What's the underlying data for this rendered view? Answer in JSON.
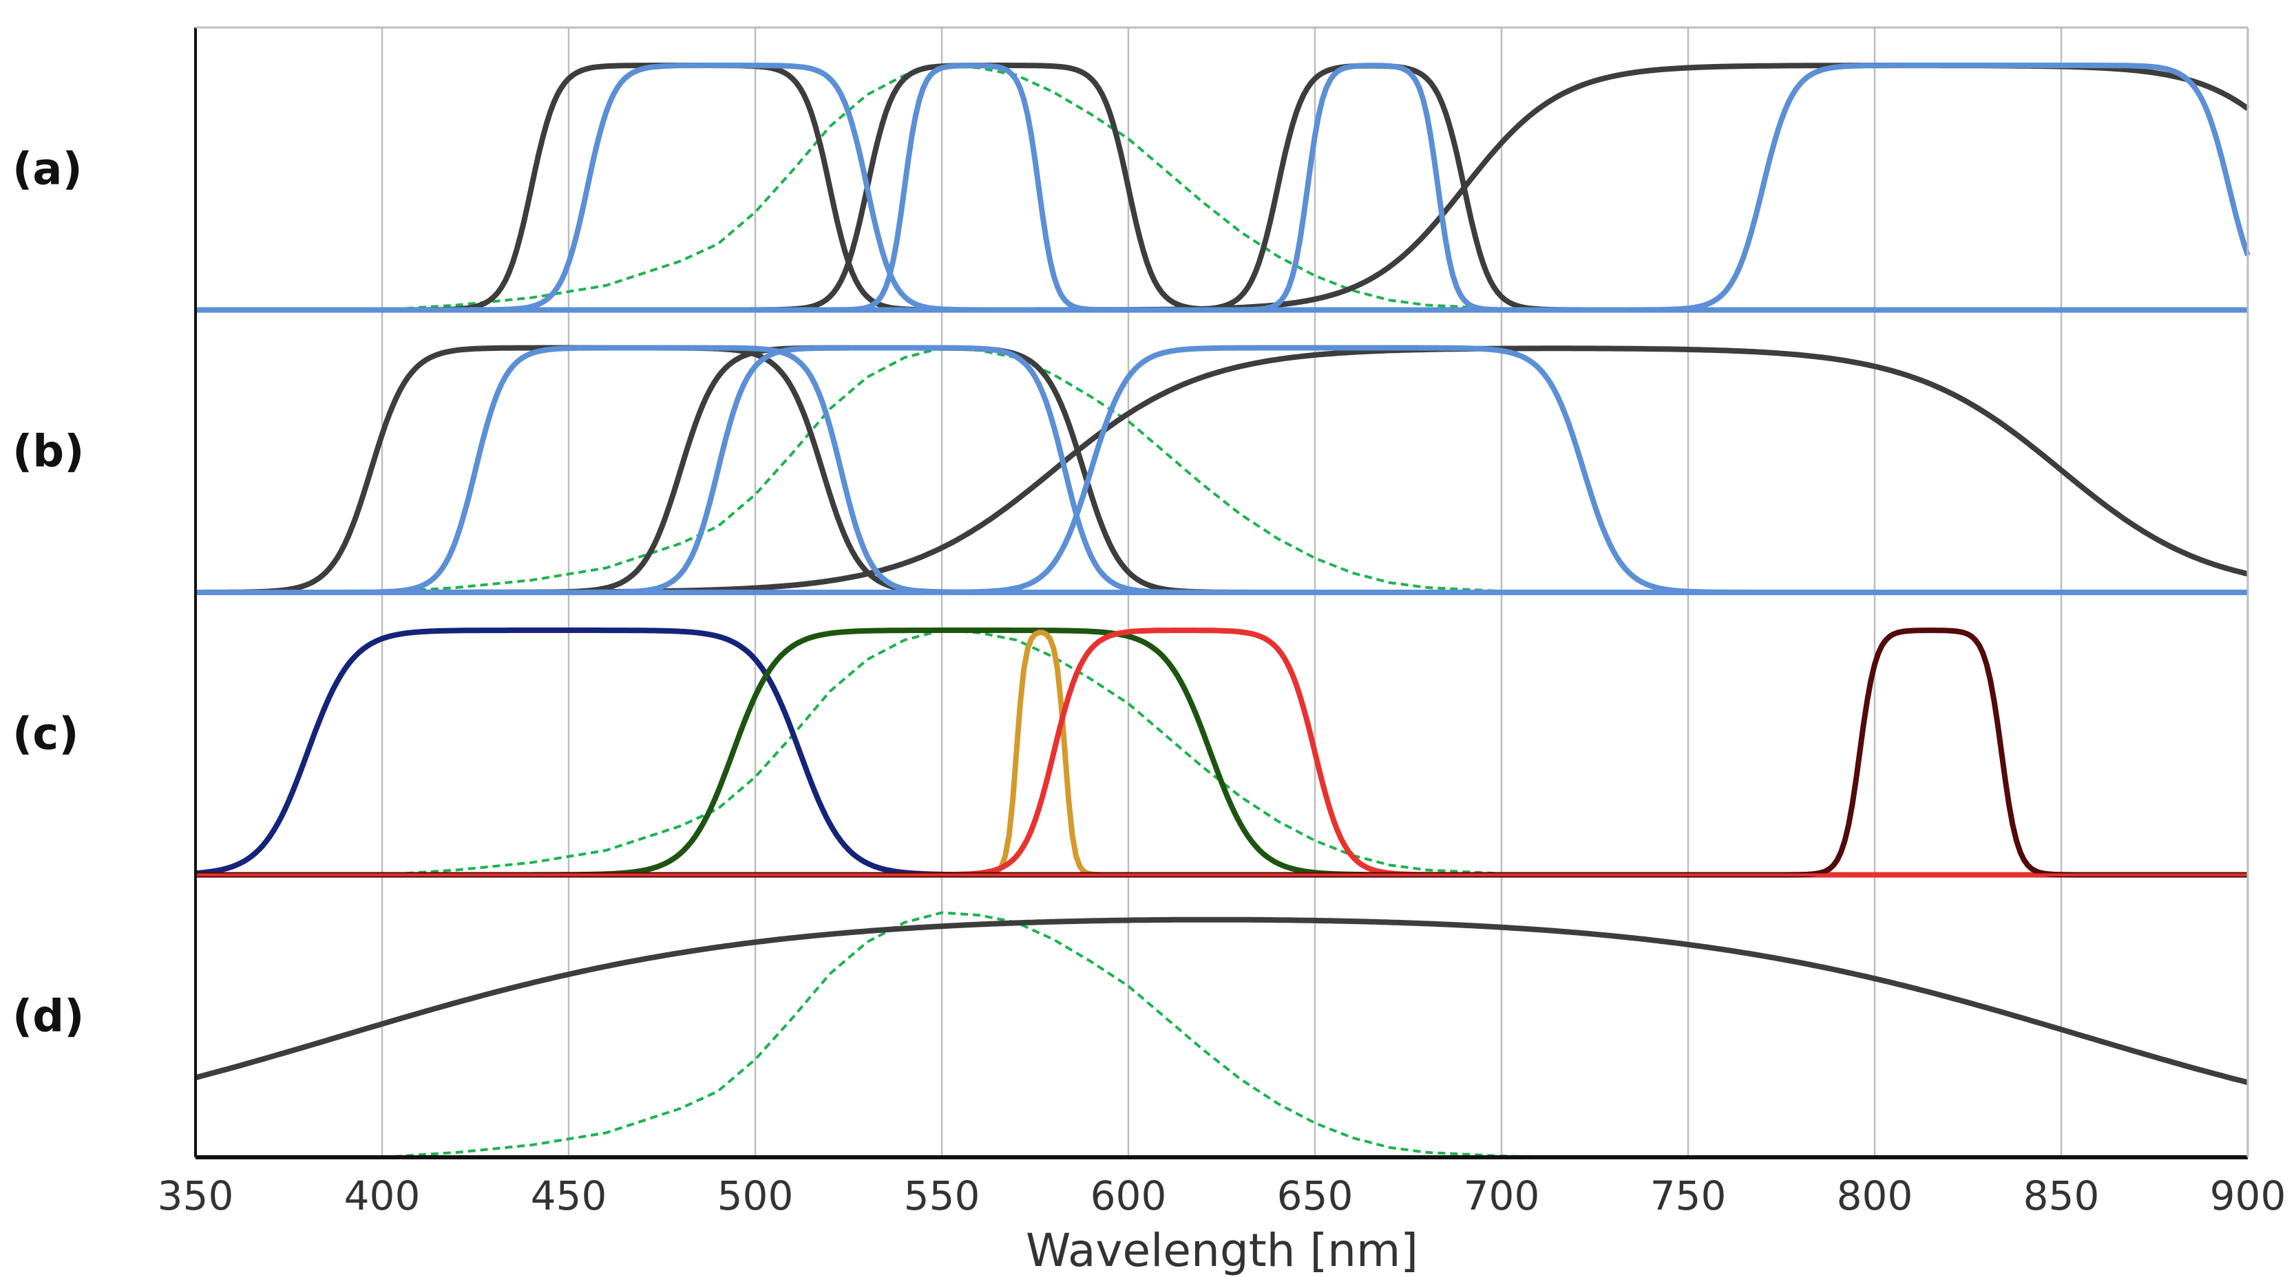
{
  "chart_data": {
    "type": "line",
    "xlabel": "Wavelength [nm]",
    "ylabel": "",
    "xlim": [
      350,
      900
    ],
    "ylim": [
      0,
      1
    ],
    "x_ticks": [
      350,
      400,
      450,
      500,
      550,
      600,
      650,
      700,
      750,
      800,
      850,
      900
    ],
    "x_tick_labels": [
      "350",
      "400",
      "450",
      "500",
      "550",
      "600",
      "650",
      "700",
      "750",
      "800",
      "850",
      "900"
    ],
    "grid": "vertical",
    "reference_curve": {
      "name": "Photopic luminosity (green dashed)",
      "color": "#1db34f",
      "style": "dashed",
      "x": [
        350,
        400,
        420,
        440,
        460,
        480,
        490,
        500,
        510,
        520,
        530,
        540,
        550,
        560,
        570,
        580,
        590,
        600,
        610,
        620,
        630,
        640,
        650,
        660,
        670,
        680,
        700,
        720,
        750,
        800,
        900
      ],
      "y": [
        0.0,
        0.0,
        0.02,
        0.05,
        0.1,
        0.2,
        0.27,
        0.4,
        0.57,
        0.75,
        0.88,
        0.96,
        1.0,
        0.99,
        0.96,
        0.89,
        0.8,
        0.7,
        0.57,
        0.44,
        0.32,
        0.22,
        0.14,
        0.08,
        0.04,
        0.02,
        0.005,
        0.0,
        0.0,
        0.0,
        0.0
      ]
    },
    "panels": [
      {
        "label": "(a)",
        "baseline_color": "#5b8fd6",
        "series": [
          {
            "name": "a-dark-blue-band",
            "color": "#3d3d3d",
            "lo": 440,
            "hi": 520,
            "w": 3.5,
            "peak": 1.0
          },
          {
            "name": "a-dark-green-band",
            "color": "#3d3d3d",
            "lo": 530,
            "hi": 600,
            "w": 3.5,
            "peak": 1.0
          },
          {
            "name": "a-dark-red-band",
            "color": "#3d3d3d",
            "lo": 640,
            "hi": 690,
            "w": 3.5,
            "peak": 1.0
          },
          {
            "name": "a-dark-nir-band",
            "color": "#3d3d3d",
            "lo": 690,
            "hi": 920,
            "w": 13.0,
            "peak": 1.0
          },
          {
            "name": "a-light-blue-band",
            "color": "#5b8fd6",
            "lo": 455,
            "hi": 530,
            "w": 3.5,
            "peak": 1.0
          },
          {
            "name": "a-light-green-band",
            "color": "#5b8fd6",
            "lo": 540,
            "hi": 576,
            "w": 2.2,
            "peak": 1.0
          },
          {
            "name": "a-light-red-band",
            "color": "#5b8fd6",
            "lo": 648,
            "hi": 683,
            "w": 2.2,
            "peak": 1.0
          },
          {
            "name": "a-light-nir-band",
            "color": "#5b8fd6",
            "lo": 770,
            "hi": 895,
            "w": 4.0,
            "peak": 1.0
          }
        ]
      },
      {
        "label": "(b)",
        "baseline_color": "#5b8fd6",
        "series": [
          {
            "name": "b-dark-blue-band",
            "color": "#3d3d3d",
            "lo": 397,
            "hi": 518,
            "w": 5.0,
            "peak": 1.0
          },
          {
            "name": "b-dark-green-band",
            "color": "#3d3d3d",
            "lo": 480,
            "hi": 588,
            "w": 5.0,
            "peak": 1.0
          },
          {
            "name": "b-dark-broad-band",
            "color": "#3d3d3d",
            "lo": 580,
            "hi": 850,
            "w": 20.0,
            "peak": 1.0
          },
          {
            "name": "b-light-blue-band",
            "color": "#5b8fd6",
            "lo": 425,
            "hi": 523,
            "w": 4.0,
            "peak": 1.0
          },
          {
            "name": "b-light-green-band",
            "color": "#5b8fd6",
            "lo": 490,
            "hi": 583,
            "w": 4.0,
            "peak": 1.0
          },
          {
            "name": "b-light-red-band",
            "color": "#5b8fd6",
            "lo": 590,
            "hi": 722,
            "w": 5.0,
            "peak": 1.0
          }
        ]
      },
      {
        "label": "(c)",
        "baseline_color": "#e8322f",
        "series": [
          {
            "name": "c-blue-band",
            "color": "#15237a",
            "lo": 380,
            "hi": 512,
            "w": 6.0,
            "peak": 1.0
          },
          {
            "name": "c-green-band",
            "color": "#1d5510",
            "lo": 494,
            "hi": 622,
            "w": 6.0,
            "peak": 1.0
          },
          {
            "name": "c-yellow-band",
            "color": "#d39a2c",
            "lo": 570,
            "hi": 583,
            "w": 1.2,
            "peak": 1.0
          },
          {
            "name": "c-red-band",
            "color": "#e8322f",
            "lo": 580,
            "hi": 650,
            "w": 4.0,
            "peak": 1.0
          },
          {
            "name": "c-nir-band",
            "color": "#520a0a",
            "lo": 796,
            "hi": 834,
            "w": 2.2,
            "peak": 1.0
          }
        ]
      },
      {
        "label": "(d)",
        "baseline_color": "#111111",
        "series": [
          {
            "name": "d-broadband",
            "color": "#3d3d3d",
            "lo": 390,
            "hi": 855,
            "w": 55.0,
            "peak": 1.0
          }
        ]
      }
    ]
  }
}
